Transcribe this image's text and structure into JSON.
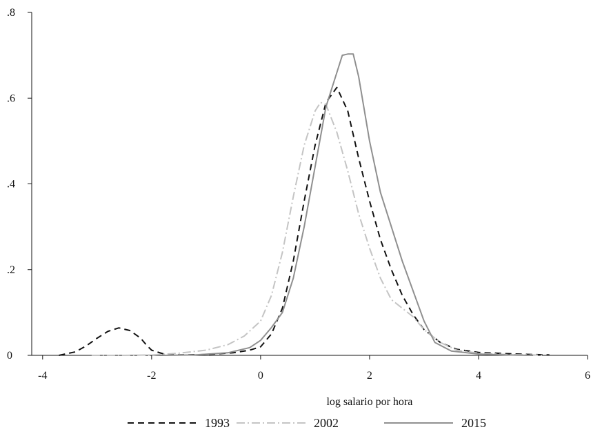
{
  "chart_data": {
    "type": "line",
    "title": "",
    "xlabel": "log salario por hora",
    "ylabel": "",
    "xlim": [
      -4.2,
      6
    ],
    "ylim": [
      0,
      0.8
    ],
    "x_ticks": [
      -4,
      -2,
      0,
      2,
      4,
      6
    ],
    "x_tick_labels": [
      "-4",
      "-2",
      "0",
      "2",
      "4",
      "6"
    ],
    "y_ticks": [
      0,
      0.2,
      0.4,
      0.6,
      0.8
    ],
    "y_tick_labels": [
      "0",
      ".2",
      ".4",
      ".6",
      ".8"
    ],
    "grid": false,
    "legend_position": "bottom",
    "series": [
      {
        "name": "1993",
        "style": "dashed",
        "color": "#111111",
        "points": [
          [
            -3.7,
            0.0
          ],
          [
            -3.4,
            0.008
          ],
          [
            -3.2,
            0.022
          ],
          [
            -3.0,
            0.04
          ],
          [
            -2.8,
            0.056
          ],
          [
            -2.6,
            0.064
          ],
          [
            -2.4,
            0.058
          ],
          [
            -2.2,
            0.04
          ],
          [
            -2.1,
            0.025
          ],
          [
            -2.0,
            0.012
          ],
          [
            -1.8,
            0.004
          ],
          [
            -1.5,
            0.001
          ],
          [
            -1.0,
            0.002
          ],
          [
            -0.5,
            0.006
          ],
          [
            -0.2,
            0.012
          ],
          [
            0.0,
            0.02
          ],
          [
            0.2,
            0.05
          ],
          [
            0.4,
            0.11
          ],
          [
            0.6,
            0.22
          ],
          [
            0.8,
            0.36
          ],
          [
            1.0,
            0.49
          ],
          [
            1.2,
            0.59
          ],
          [
            1.4,
            0.625
          ],
          [
            1.6,
            0.57
          ],
          [
            1.8,
            0.46
          ],
          [
            2.0,
            0.36
          ],
          [
            2.2,
            0.27
          ],
          [
            2.4,
            0.2
          ],
          [
            2.6,
            0.14
          ],
          [
            2.8,
            0.095
          ],
          [
            3.0,
            0.06
          ],
          [
            3.3,
            0.03
          ],
          [
            3.6,
            0.014
          ],
          [
            4.0,
            0.007
          ],
          [
            4.5,
            0.004
          ],
          [
            5.0,
            0.002
          ],
          [
            5.3,
            0.001
          ]
        ]
      },
      {
        "name": "2002",
        "style": "dashdot",
        "color": "#c4c4c4",
        "points": [
          [
            -3.1,
            0.0
          ],
          [
            -2.5,
            0.0
          ],
          [
            -2.0,
            0.001
          ],
          [
            -1.5,
            0.005
          ],
          [
            -1.0,
            0.012
          ],
          [
            -0.6,
            0.025
          ],
          [
            -0.3,
            0.045
          ],
          [
            0.0,
            0.08
          ],
          [
            0.2,
            0.14
          ],
          [
            0.4,
            0.24
          ],
          [
            0.6,
            0.37
          ],
          [
            0.8,
            0.49
          ],
          [
            1.0,
            0.57
          ],
          [
            1.1,
            0.59
          ],
          [
            1.2,
            0.585
          ],
          [
            1.4,
            0.52
          ],
          [
            1.6,
            0.43
          ],
          [
            1.8,
            0.33
          ],
          [
            2.0,
            0.25
          ],
          [
            2.2,
            0.18
          ],
          [
            2.4,
            0.13
          ],
          [
            2.6,
            0.11
          ],
          [
            2.8,
            0.09
          ],
          [
            3.0,
            0.06
          ],
          [
            3.3,
            0.03
          ],
          [
            3.6,
            0.012
          ],
          [
            4.0,
            0.005
          ],
          [
            4.5,
            0.002
          ],
          [
            5.0,
            0.001
          ],
          [
            5.2,
            0.0
          ]
        ]
      },
      {
        "name": "2015",
        "style": "solid",
        "color": "#8f8f8f",
        "points": [
          [
            -1.8,
            0.0
          ],
          [
            -1.2,
            0.001
          ],
          [
            -0.6,
            0.006
          ],
          [
            -0.2,
            0.018
          ],
          [
            0.0,
            0.035
          ],
          [
            0.2,
            0.065
          ],
          [
            0.4,
            0.1
          ],
          [
            0.6,
            0.18
          ],
          [
            0.8,
            0.3
          ],
          [
            1.0,
            0.44
          ],
          [
            1.2,
            0.58
          ],
          [
            1.4,
            0.66
          ],
          [
            1.5,
            0.7
          ],
          [
            1.6,
            0.703
          ],
          [
            1.7,
            0.703
          ],
          [
            1.8,
            0.65
          ],
          [
            2.0,
            0.5
          ],
          [
            2.2,
            0.38
          ],
          [
            2.4,
            0.3
          ],
          [
            2.6,
            0.22
          ],
          [
            2.8,
            0.15
          ],
          [
            3.0,
            0.08
          ],
          [
            3.2,
            0.03
          ],
          [
            3.5,
            0.01
          ],
          [
            4.0,
            0.003
          ],
          [
            4.5,
            0.001
          ],
          [
            5.0,
            0.0
          ]
        ]
      }
    ]
  }
}
